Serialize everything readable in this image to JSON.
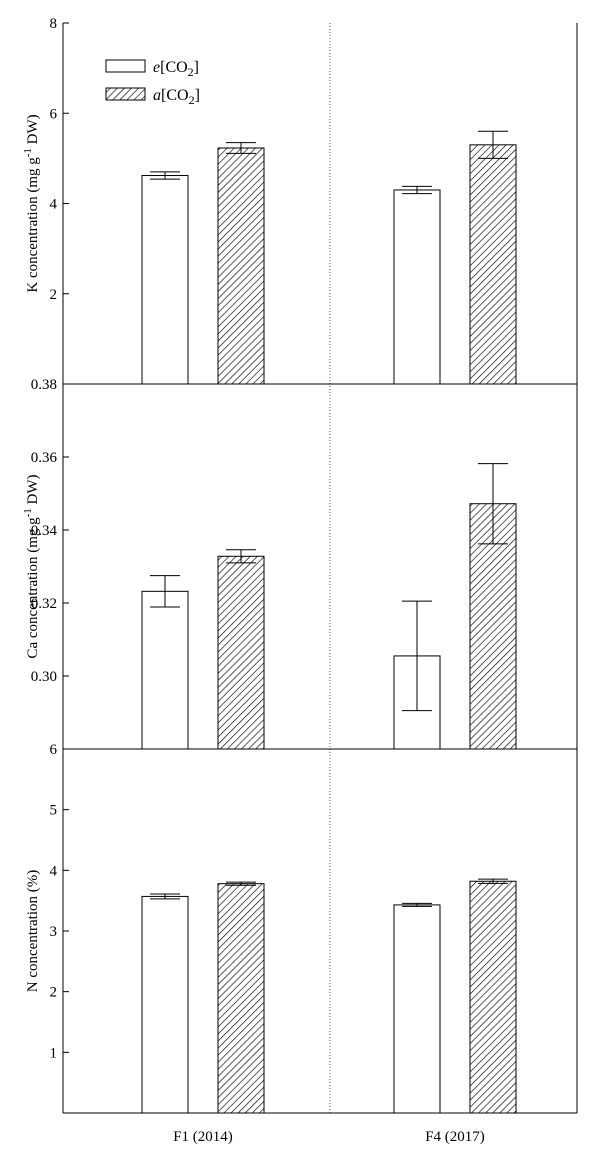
{
  "chart_data": [
    {
      "type": "bar",
      "panel": "top",
      "ylabel": "K concentration (mg g-1 DW)",
      "ylabel_parts": {
        "before": "K concentration (mg g",
        "sup": "-1",
        "after": " DW)"
      },
      "ylim": [
        0,
        8
      ],
      "yticks": [
        "2",
        "4",
        "6",
        "8"
      ],
      "categories": [
        "F1 (2014)",
        "F4 (2017)"
      ],
      "series": [
        {
          "name": "e[CO2]",
          "values": [
            4.62,
            4.3
          ],
          "errors": [
            0.08,
            0.08
          ]
        },
        {
          "name": "a[CO2]",
          "values": [
            5.23,
            5.3
          ],
          "errors": [
            0.12,
            0.3
          ]
        }
      ]
    },
    {
      "type": "bar",
      "panel": "middle",
      "ylabel": "Ca concentration (mg g-1 DW)",
      "ylabel_parts": {
        "before": "Ca concentration (mg g",
        "sup": "-1",
        "after": " DW)"
      },
      "ylim": [
        0.28,
        0.38
      ],
      "yticks": [
        "0.30",
        "0.32",
        "0.34",
        "0.36",
        "0.38"
      ],
      "categories": [
        "F1 (2014)",
        "F4 (2017)"
      ],
      "series": [
        {
          "name": "e[CO2]",
          "values": [
            0.3232,
            0.3055
          ],
          "errors": [
            0.0043,
            0.015
          ]
        },
        {
          "name": "a[CO2]",
          "values": [
            0.3328,
            0.3472
          ],
          "errors": [
            0.0018,
            0.011
          ]
        }
      ]
    },
    {
      "type": "bar",
      "panel": "bottom",
      "ylabel": "N concentration (%)",
      "ylim": [
        0,
        6
      ],
      "yticks": [
        "1",
        "2",
        "3",
        "4",
        "5",
        "6"
      ],
      "categories": [
        "F1 (2014)",
        "F4 (2017)"
      ],
      "series": [
        {
          "name": "e[CO2]",
          "values": [
            3.57,
            3.43
          ],
          "errors": [
            0.04,
            0.025
          ]
        },
        {
          "name": "a[CO2]",
          "values": [
            3.78,
            3.82
          ],
          "errors": [
            0.025,
            0.035
          ]
        }
      ]
    }
  ],
  "legend": [
    {
      "italic": "e",
      "rest": "[CO",
      "sub": "2",
      "close": "]",
      "pattern": "open"
    },
    {
      "italic": "a",
      "rest": "[CO",
      "sub": "2",
      "close": "]",
      "pattern": "hatched"
    }
  ],
  "legend_position": "top-left",
  "colors": {
    "axis": "#000000",
    "bar_fill": "#ffffff",
    "hatch": "#000000",
    "divider": "#555555"
  }
}
